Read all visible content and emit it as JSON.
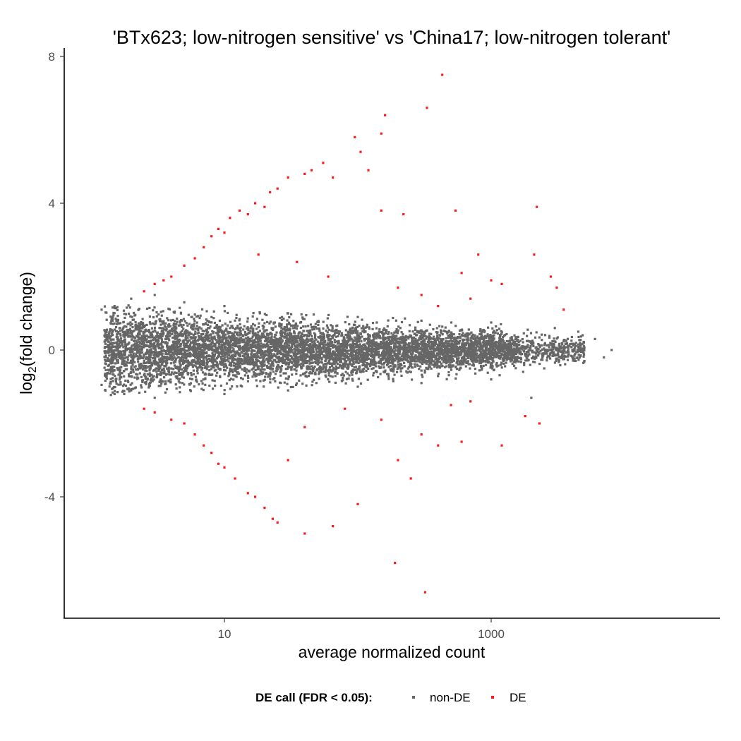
{
  "chart_data": {
    "type": "scatter",
    "title": "'BTx623; low-nitrogen sensitive' vs 'China17; low-nitrogen tolerant'",
    "xlabel": "average normalized count",
    "ylabel_main": "log",
    "ylabel_sub": "2",
    "ylabel_rest": "(fold change)",
    "x_scale": "log10",
    "xlim": [
      1,
      10000
    ],
    "ylim": [
      -7.2,
      8.3
    ],
    "x_ticks": [
      {
        "value": 10,
        "label": "10"
      },
      {
        "value": 1000,
        "label": "1000"
      }
    ],
    "y_ticks": [
      {
        "value": -4,
        "label": "-4"
      },
      {
        "value": 0,
        "label": "0"
      },
      {
        "value": 4,
        "label": "4"
      },
      {
        "value": 8,
        "label": "8"
      }
    ],
    "grid": false,
    "legend": {
      "title": "DE call (FDR < 0.05):",
      "position": "bottom",
      "items": [
        {
          "label": "non-DE",
          "color": "#666666"
        },
        {
          "label": "DE",
          "color": "#ff1a1a"
        }
      ]
    },
    "series": [
      {
        "name": "non-DE",
        "color": "#666666",
        "note_points": "dense cloud around 0; representative extreme points listed",
        "points": [
          [
            1.2,
            1.1
          ],
          [
            1.2,
            -0.95
          ],
          [
            1.5,
            1.2
          ],
          [
            2,
            1.4
          ],
          [
            3,
            1.5
          ],
          [
            5,
            1.3
          ],
          [
            10,
            1.2
          ],
          [
            30,
            1.0
          ],
          [
            100,
            0.9
          ],
          [
            300,
            0.8
          ],
          [
            1000,
            0.75
          ],
          [
            3000,
            0.6
          ],
          [
            4500,
            0.5
          ],
          [
            6000,
            0.3
          ],
          [
            8000,
            0.0
          ],
          [
            7000,
            -0.2
          ],
          [
            5000,
            -0.3
          ],
          [
            2500,
            -0.5
          ],
          [
            2000,
            -1.3
          ],
          [
            1000,
            -0.8
          ],
          [
            300,
            -0.9
          ],
          [
            100,
            -1.0
          ],
          [
            30,
            -1.1
          ],
          [
            10,
            -1.2
          ],
          [
            3,
            -1.3
          ],
          [
            1.5,
            -1.2
          ]
        ]
      },
      {
        "name": "DE",
        "color": "#ff1a1a",
        "points": [
          [
            430,
            7.5
          ],
          [
            330,
            6.6
          ],
          [
            160,
            6.4
          ],
          [
            150,
            5.9
          ],
          [
            95,
            5.8
          ],
          [
            105,
            5.4
          ],
          [
            120,
            4.9
          ],
          [
            55,
            5.1
          ],
          [
            45,
            4.9
          ],
          [
            40,
            4.8
          ],
          [
            65,
            4.7
          ],
          [
            30,
            4.7
          ],
          [
            25,
            4.4
          ],
          [
            22,
            4.3
          ],
          [
            20,
            3.9
          ],
          [
            17,
            4.0
          ],
          [
            15,
            3.7
          ],
          [
            13,
            3.8
          ],
          [
            11,
            3.6
          ],
          [
            10,
            3.2
          ],
          [
            9,
            3.3
          ],
          [
            8,
            3.1
          ],
          [
            7,
            2.8
          ],
          [
            6,
            2.5
          ],
          [
            5,
            2.3
          ],
          [
            4,
            2.0
          ],
          [
            3.5,
            1.9
          ],
          [
            3,
            1.8
          ],
          [
            2.5,
            1.6
          ],
          [
            150,
            3.8
          ],
          [
            220,
            3.7
          ],
          [
            540,
            3.8
          ],
          [
            2200,
            3.9
          ],
          [
            2100,
            2.6
          ],
          [
            800,
            2.6
          ],
          [
            600,
            2.1
          ],
          [
            1000,
            1.9
          ],
          [
            1200,
            1.8
          ],
          [
            2800,
            2.0
          ],
          [
            3100,
            1.7
          ],
          [
            3500,
            1.1
          ],
          [
            300,
            1.5
          ],
          [
            400,
            1.2
          ],
          [
            700,
            1.4
          ],
          [
            200,
            1.7
          ],
          [
            60,
            2.0
          ],
          [
            35,
            2.4
          ],
          [
            18,
            2.6
          ],
          [
            2.5,
            -1.6
          ],
          [
            3,
            -1.7
          ],
          [
            4,
            -1.9
          ],
          [
            5,
            -2.0
          ],
          [
            6,
            -2.3
          ],
          [
            7,
            -2.6
          ],
          [
            8,
            -2.8
          ],
          [
            9,
            -3.1
          ],
          [
            10,
            -3.2
          ],
          [
            12,
            -3.5
          ],
          [
            15,
            -3.9
          ],
          [
            17,
            -4.0
          ],
          [
            20,
            -4.3
          ],
          [
            23,
            -4.6
          ],
          [
            25,
            -4.7
          ],
          [
            40,
            -5.0
          ],
          [
            65,
            -4.8
          ],
          [
            100,
            -4.2
          ],
          [
            200,
            -3.0
          ],
          [
            250,
            -3.5
          ],
          [
            300,
            -2.3
          ],
          [
            400,
            -2.6
          ],
          [
            600,
            -2.5
          ],
          [
            1200,
            -2.6
          ],
          [
            1800,
            -1.8
          ],
          [
            2300,
            -2.0
          ],
          [
            190,
            -5.8
          ],
          [
            320,
            -6.6
          ],
          [
            500,
            -1.5
          ],
          [
            700,
            -1.4
          ],
          [
            150,
            -1.9
          ],
          [
            80,
            -1.6
          ],
          [
            40,
            -2.1
          ],
          [
            30,
            -3.0
          ]
        ]
      }
    ]
  }
}
